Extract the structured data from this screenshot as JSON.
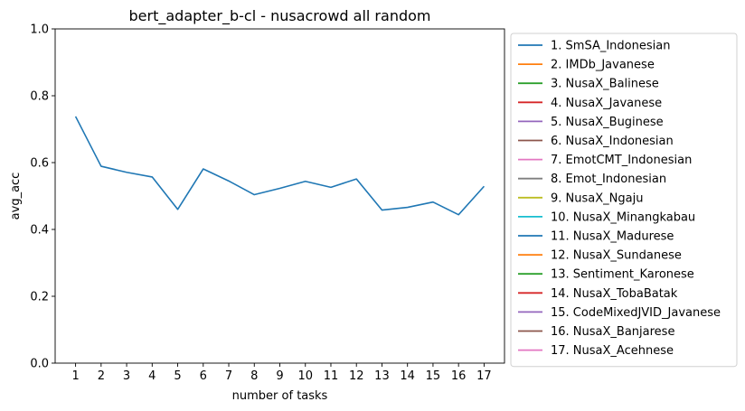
{
  "chart_data": {
    "type": "line",
    "title": "bert_adapter_b-cl - nusacrowd all random",
    "xlabel": "number of tasks",
    "ylabel": "avg_acc",
    "ylim": [
      0,
      1.0
    ],
    "x": [
      1,
      2,
      3,
      4,
      5,
      6,
      7,
      8,
      9,
      10,
      11,
      12,
      13,
      14,
      15,
      16,
      17
    ],
    "y_ticks": [
      "0.0",
      "0.2",
      "0.4",
      "0.6",
      "0.8",
      "1.0"
    ],
    "grid": false,
    "legend_position": "outside-right",
    "series": [
      {
        "name": "1. SmSA_Indonesian",
        "color": "#1f77b4",
        "values": [
          0.738,
          0.589,
          0.571,
          0.557,
          0.46,
          0.581,
          0.545,
          0.504,
          0.523,
          0.544,
          0.526,
          0.551,
          0.458,
          0.466,
          0.482,
          0.444,
          0.529
        ]
      }
    ],
    "legend": [
      {
        "label": "1. SmSA_Indonesian",
        "color": "#1f77b4"
      },
      {
        "label": "2. IMDb_Javanese",
        "color": "#ff7f0e"
      },
      {
        "label": "3. NusaX_Balinese",
        "color": "#2ca02c"
      },
      {
        "label": "4. NusaX_Javanese",
        "color": "#d62728"
      },
      {
        "label": "5. NusaX_Buginese",
        "color": "#9467bd"
      },
      {
        "label": "6. NusaX_Indonesian",
        "color": "#8c564b"
      },
      {
        "label": "7. EmotCMT_Indonesian",
        "color": "#e377c2"
      },
      {
        "label": "8. Emot_Indonesian",
        "color": "#7f7f7f"
      },
      {
        "label": "9. NusaX_Ngaju",
        "color": "#bcbd22"
      },
      {
        "label": "10. NusaX_Minangkabau",
        "color": "#17becf"
      },
      {
        "label": "11. NusaX_Madurese",
        "color": "#1f77b4"
      },
      {
        "label": "12. NusaX_Sundanese",
        "color": "#ff7f0e"
      },
      {
        "label": "13. Sentiment_Karonese",
        "color": "#2ca02c"
      },
      {
        "label": "14. NusaX_TobaBatak",
        "color": "#d62728"
      },
      {
        "label": "15. CodeMixedJVID_Javanese",
        "color": "#9467bd"
      },
      {
        "label": "16. NusaX_Banjarese",
        "color": "#8c564b"
      },
      {
        "label": "17. NusaX_Acehnese",
        "color": "#e377c2"
      }
    ]
  }
}
